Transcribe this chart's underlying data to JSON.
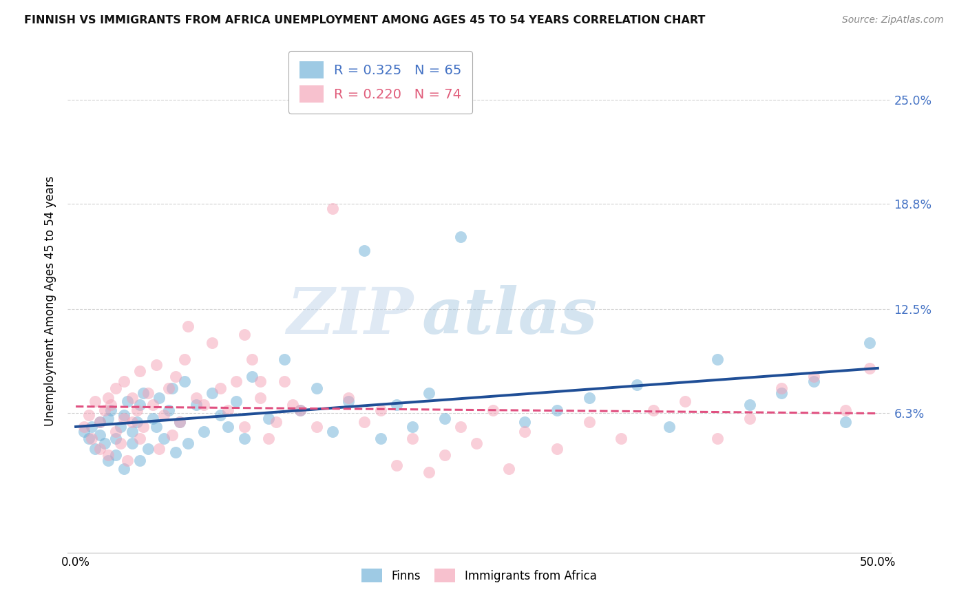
{
  "title": "FINNISH VS IMMIGRANTS FROM AFRICA UNEMPLOYMENT AMONG AGES 45 TO 54 YEARS CORRELATION CHART",
  "source": "Source: ZipAtlas.com",
  "ylabel": "Unemployment Among Ages 45 to 54 years",
  "ytick_labels": [
    "25.0%",
    "18.8%",
    "12.5%",
    "6.3%"
  ],
  "ytick_values": [
    0.25,
    0.188,
    0.125,
    0.063
  ],
  "xlim": [
    0.0,
    0.5
  ],
  "ylim": [
    -0.02,
    0.28
  ],
  "finns_R": 0.325,
  "finns_N": 65,
  "africa_R": 0.22,
  "africa_N": 74,
  "scatter_blue_color": "#6baed6",
  "scatter_pink_color": "#f4a0b5",
  "line_blue_color": "#1f4e96",
  "line_pink_color": "#e05080",
  "grid_color": "#cccccc",
  "watermark_color": "#c5d8ee",
  "legend_blue_text_color": "#4472c4",
  "legend_pink_text_color": "#e05c7a",
  "legend1_blue_label": "R = 0.325   N = 65",
  "legend1_pink_label": "R = 0.220   N = 74",
  "bottom_legend_finns": "Finns",
  "bottom_legend_africa": "Immigrants from Africa",
  "finns_x": [
    0.005,
    0.008,
    0.01,
    0.012,
    0.015,
    0.015,
    0.018,
    0.02,
    0.02,
    0.022,
    0.025,
    0.025,
    0.028,
    0.03,
    0.03,
    0.032,
    0.035,
    0.035,
    0.038,
    0.04,
    0.04,
    0.042,
    0.045,
    0.048,
    0.05,
    0.052,
    0.055,
    0.058,
    0.06,
    0.062,
    0.065,
    0.068,
    0.07,
    0.075,
    0.08,
    0.085,
    0.09,
    0.095,
    0.1,
    0.105,
    0.11,
    0.12,
    0.13,
    0.14,
    0.15,
    0.16,
    0.17,
    0.18,
    0.19,
    0.2,
    0.21,
    0.22,
    0.23,
    0.24,
    0.28,
    0.3,
    0.32,
    0.35,
    0.37,
    0.4,
    0.42,
    0.44,
    0.46,
    0.48,
    0.495
  ],
  "finns_y": [
    0.052,
    0.048,
    0.055,
    0.042,
    0.05,
    0.058,
    0.045,
    0.06,
    0.035,
    0.065,
    0.048,
    0.038,
    0.055,
    0.062,
    0.03,
    0.07,
    0.045,
    0.052,
    0.058,
    0.068,
    0.035,
    0.075,
    0.042,
    0.06,
    0.055,
    0.072,
    0.048,
    0.065,
    0.078,
    0.04,
    0.058,
    0.082,
    0.045,
    0.068,
    0.052,
    0.075,
    0.062,
    0.055,
    0.07,
    0.048,
    0.085,
    0.06,
    0.095,
    0.065,
    0.078,
    0.052,
    0.07,
    0.16,
    0.048,
    0.068,
    0.055,
    0.075,
    0.06,
    0.168,
    0.058,
    0.065,
    0.072,
    0.08,
    0.055,
    0.095,
    0.068,
    0.075,
    0.082,
    0.058,
    0.105
  ],
  "africa_x": [
    0.005,
    0.008,
    0.01,
    0.012,
    0.015,
    0.015,
    0.018,
    0.02,
    0.02,
    0.022,
    0.025,
    0.025,
    0.028,
    0.03,
    0.03,
    0.032,
    0.035,
    0.035,
    0.038,
    0.04,
    0.04,
    0.042,
    0.045,
    0.048,
    0.05,
    0.052,
    0.055,
    0.058,
    0.06,
    0.062,
    0.065,
    0.068,
    0.07,
    0.075,
    0.08,
    0.085,
    0.09,
    0.095,
    0.1,
    0.105,
    0.11,
    0.115,
    0.12,
    0.13,
    0.14,
    0.15,
    0.16,
    0.17,
    0.18,
    0.19,
    0.2,
    0.21,
    0.22,
    0.23,
    0.24,
    0.25,
    0.26,
    0.27,
    0.28,
    0.3,
    0.32,
    0.34,
    0.36,
    0.38,
    0.4,
    0.42,
    0.44,
    0.46,
    0.48,
    0.495,
    0.105,
    0.115,
    0.125,
    0.135
  ],
  "africa_y": [
    0.055,
    0.062,
    0.048,
    0.07,
    0.058,
    0.042,
    0.065,
    0.072,
    0.038,
    0.068,
    0.052,
    0.078,
    0.045,
    0.06,
    0.082,
    0.035,
    0.072,
    0.058,
    0.065,
    0.048,
    0.088,
    0.055,
    0.075,
    0.068,
    0.092,
    0.042,
    0.062,
    0.078,
    0.05,
    0.085,
    0.058,
    0.095,
    0.115,
    0.072,
    0.068,
    0.105,
    0.078,
    0.065,
    0.082,
    0.055,
    0.095,
    0.072,
    0.048,
    0.082,
    0.065,
    0.055,
    0.185,
    0.072,
    0.058,
    0.065,
    0.032,
    0.048,
    0.028,
    0.038,
    0.055,
    0.045,
    0.065,
    0.03,
    0.052,
    0.042,
    0.058,
    0.048,
    0.065,
    0.07,
    0.048,
    0.06,
    0.078,
    0.085,
    0.065,
    0.09,
    0.11,
    0.082,
    0.058,
    0.068
  ]
}
